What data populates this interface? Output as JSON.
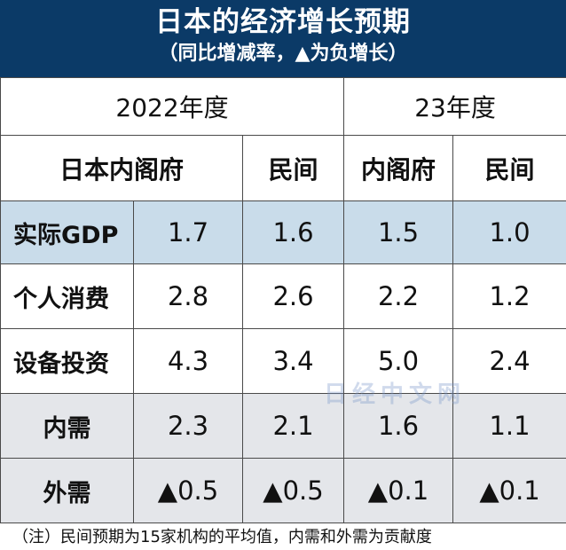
{
  "header": {
    "title": "日本的经济增长预期",
    "subtitle": "（同比增减率，▲为负增长）"
  },
  "table": {
    "years": [
      "2022年度",
      "23年度"
    ],
    "columns": [
      "日本内阁府",
      "民间",
      "内阁府",
      "民间"
    ],
    "rows": [
      {
        "label": "实际GDP",
        "values": [
          "1.7",
          "1.6",
          "1.5",
          "1.0"
        ]
      },
      {
        "label": "个人消费",
        "values": [
          "2.8",
          "2.6",
          "2.2",
          "1.2"
        ]
      },
      {
        "label": "设备投资",
        "values": [
          "4.3",
          "3.4",
          "5.0",
          "2.4"
        ]
      },
      {
        "label": "内需",
        "values": [
          "2.3",
          "2.1",
          "1.6",
          "1.1"
        ]
      },
      {
        "label": "外需",
        "values": [
          "▲0.5",
          "▲0.5",
          "▲0.1",
          "▲0.1"
        ]
      }
    ]
  },
  "watermark": "日经中文网",
  "note": "（注）民间预期为15家机构的平均值，内需和外需为贡献度"
}
